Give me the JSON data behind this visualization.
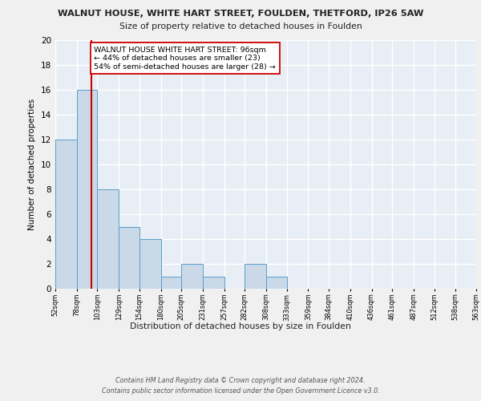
{
  "title1": "WALNUT HOUSE, WHITE HART STREET, FOULDEN, THETFORD, IP26 5AW",
  "title2": "Size of property relative to detached houses in Foulden",
  "xlabel": "Distribution of detached houses by size in Foulden",
  "ylabel": "Number of detached properties",
  "bin_edges": [
    52,
    78,
    103,
    129,
    154,
    180,
    205,
    231,
    257,
    282,
    308,
    333,
    359,
    384,
    410,
    436,
    461,
    487,
    512,
    538,
    563
  ],
  "bin_labels": [
    "52sqm",
    "78sqm",
    "103sqm",
    "129sqm",
    "154sqm",
    "180sqm",
    "205sqm",
    "231sqm",
    "257sqm",
    "282sqm",
    "308sqm",
    "333sqm",
    "359sqm",
    "384sqm",
    "410sqm",
    "436sqm",
    "461sqm",
    "487sqm",
    "512sqm",
    "538sqm",
    "563sqm"
  ],
  "counts": [
    12,
    16,
    8,
    5,
    4,
    1,
    2,
    1,
    0,
    2,
    1,
    0,
    0,
    0,
    0,
    0,
    0,
    0,
    0,
    0
  ],
  "bar_color": "#c9d9e8",
  "bar_edge_color": "#5a9ec8",
  "reference_line_x": 96,
  "reference_line_color": "#cc0000",
  "ylim": [
    0,
    20
  ],
  "yticks": [
    0,
    2,
    4,
    6,
    8,
    10,
    12,
    14,
    16,
    18,
    20
  ],
  "annotation_text": "WALNUT HOUSE WHITE HART STREET: 96sqm\n← 44% of detached houses are smaller (23)\n54% of semi-detached houses are larger (28) →",
  "annotation_box_color": "#ffffff",
  "annotation_box_edge": "#cc0000",
  "footer": "Contains HM Land Registry data © Crown copyright and database right 2024.\nContains public sector information licensed under the Open Government Licence v3.0.",
  "background_color": "#e8eef5",
  "grid_color": "#ffffff",
  "fig_background": "#f0f0f0"
}
